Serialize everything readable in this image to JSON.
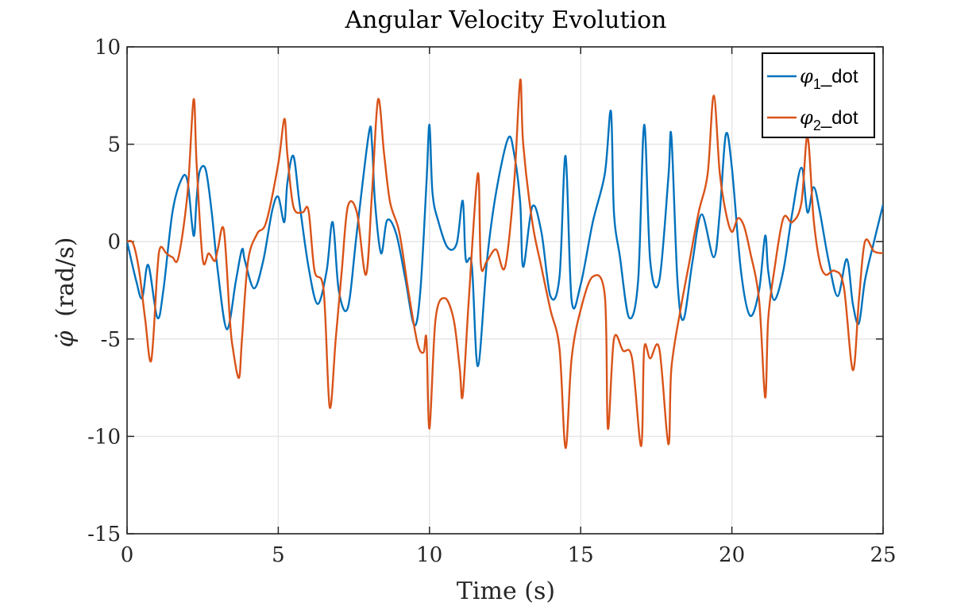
{
  "chart_data": {
    "type": "line",
    "title": "Angular Velocity Evolution",
    "xlabel": "Time (s)",
    "ylabel_symbol": "φ̇",
    "ylabel_unit": "(rad/s)",
    "xlim": [
      0,
      25
    ],
    "ylim": [
      -15,
      10
    ],
    "xticks": [
      0,
      5,
      10,
      15,
      20,
      25
    ],
    "xtick_labels": [
      "0",
      "5",
      "10",
      "15",
      "20",
      "25"
    ],
    "yticks": [
      -15,
      -10,
      -5,
      0,
      5,
      10
    ],
    "ytick_labels": [
      "-15",
      "-10",
      "-5",
      "0",
      "5",
      "10"
    ],
    "grid": true,
    "legend_position": "top-right",
    "series": [
      {
        "name": "φ1_dot",
        "legend_symbol": "φ",
        "legend_sub": "1",
        "legend_suffix": "_dot",
        "color": "#0072BD",
        "x": [
          0,
          0.3,
          0.5,
          0.7,
          1.0,
          1.2,
          1.5,
          1.8,
          2.0,
          2.2,
          2.3,
          2.4,
          2.6,
          2.8,
          3.0,
          3.3,
          3.6,
          3.8,
          3.9,
          4.2,
          4.5,
          4.8,
          5.0,
          5.2,
          5.3,
          5.5,
          5.7,
          6.0,
          6.3,
          6.6,
          6.8,
          7.0,
          7.3,
          7.6,
          8.0,
          8.1,
          8.2,
          8.4,
          8.6,
          8.9,
          9.2,
          9.5,
          9.7,
          9.9,
          10.0,
          10.1,
          10.3,
          10.6,
          10.9,
          11.1,
          11.2,
          11.4,
          11.6,
          11.9,
          12.2,
          12.6,
          12.8,
          13.0,
          13.1,
          13.4,
          13.7,
          14.0,
          14.3,
          14.5,
          14.7,
          15.0,
          15.4,
          15.8,
          16.0,
          16.1,
          16.3,
          16.6,
          16.9,
          17.1,
          17.3,
          17.6,
          17.9,
          18.0,
          18.2,
          18.4,
          18.7,
          19.0,
          19.4,
          19.6,
          19.8,
          20.0,
          20.3,
          20.6,
          20.9,
          21.1,
          21.2,
          21.4,
          21.7,
          22.0,
          22.3,
          22.5,
          22.7,
          22.9,
          23.2,
          23.5,
          23.8,
          24.0,
          24.2,
          24.4,
          24.7,
          25.0
        ],
        "y": [
          0,
          -2.0,
          -2.9,
          -1.2,
          -3.9,
          -2.5,
          1.5,
          3.2,
          3.1,
          0.3,
          2.2,
          3.6,
          3.7,
          1.5,
          -1.5,
          -4.5,
          -2.0,
          -0.4,
          -1.0,
          -2.4,
          -1.0,
          1.6,
          2.3,
          1.0,
          3.0,
          4.4,
          2.0,
          -1.3,
          -3.2,
          -1.5,
          1.0,
          -2.5,
          -3.4,
          0.5,
          5.6,
          5.0,
          2.0,
          -0.6,
          1.1,
          0.4,
          -1.9,
          -4.3,
          -2.5,
          3.0,
          6.0,
          2.5,
          1.0,
          -0.3,
          -0.1,
          2.1,
          -0.9,
          -1.2,
          -6.4,
          -1.0,
          2.5,
          5.3,
          4.5,
          2.0,
          -1.3,
          1.8,
          0.5,
          -2.8,
          -1.8,
          4.4,
          -3.0,
          -2.2,
          1.0,
          3.5,
          6.7,
          1.5,
          -0.8,
          -3.9,
          -2.0,
          6.0,
          -1.0,
          -2.0,
          3.3,
          5.4,
          -2.0,
          -4.0,
          -1.0,
          1.4,
          -0.8,
          1.5,
          5.5,
          3.8,
          -1.5,
          -3.8,
          -2.5,
          0.3,
          -1.5,
          -3.0,
          -1.5,
          1.5,
          3.8,
          1.5,
          2.8,
          1.6,
          -1.0,
          -2.8,
          -0.9,
          -3.2,
          -4.2,
          -2.0,
          0.0,
          1.9
        ]
      },
      {
        "name": "φ2_dot",
        "legend_symbol": "φ",
        "legend_sub": "2",
        "legend_suffix": "_dot",
        "color": "#D95319",
        "x": [
          0,
          0.2,
          0.4,
          0.6,
          0.8,
          1.0,
          1.1,
          1.3,
          1.5,
          1.7,
          2.0,
          2.2,
          2.3,
          2.5,
          2.7,
          2.9,
          3.0,
          3.2,
          3.4,
          3.5,
          3.7,
          3.8,
          4.0,
          4.3,
          4.6,
          5.0,
          5.2,
          5.3,
          5.5,
          5.8,
          6.0,
          6.2,
          6.5,
          6.7,
          6.9,
          7.1,
          7.3,
          7.6,
          7.9,
          8.1,
          8.3,
          8.5,
          8.7,
          9.0,
          9.3,
          9.6,
          9.8,
          9.9,
          10.0,
          10.2,
          10.5,
          10.8,
          11.0,
          11.1,
          11.3,
          11.6,
          11.7,
          11.9,
          12.2,
          12.5,
          12.8,
          13.0,
          13.1,
          13.4,
          13.7,
          14.0,
          14.3,
          14.5,
          14.7,
          15.0,
          15.4,
          15.8,
          15.9,
          16.1,
          16.4,
          16.7,
          17.0,
          17.1,
          17.3,
          17.6,
          17.9,
          18.0,
          18.3,
          18.6,
          18.9,
          19.2,
          19.4,
          19.6,
          19.8,
          20.0,
          20.2,
          20.4,
          20.6,
          20.9,
          21.1,
          21.2,
          21.4,
          21.7,
          22.0,
          22.3,
          22.5,
          22.7,
          22.9,
          23.1,
          23.4,
          23.7,
          24.0,
          24.2,
          24.4,
          24.7,
          25.0
        ],
        "y": [
          0,
          -0.1,
          -1.5,
          -4.0,
          -6.1,
          -1.5,
          -0.3,
          -0.6,
          -0.8,
          -0.8,
          2.5,
          7.3,
          4.0,
          -0.9,
          -0.6,
          -1.0,
          -0.4,
          0.6,
          -4.0,
          -5.5,
          -7.0,
          -5.0,
          -1.0,
          0.4,
          1.0,
          4.0,
          6.3,
          4.5,
          1.8,
          1.5,
          1.6,
          -1.5,
          -2.5,
          -8.5,
          -5.0,
          -1.5,
          1.8,
          1.5,
          -1.7,
          2.5,
          7.3,
          4.5,
          2.0,
          0.5,
          -2.5,
          -5.2,
          -5.7,
          -5.0,
          -9.6,
          -4.0,
          -2.9,
          -4.0,
          -6.5,
          -7.9,
          -3.0,
          3.5,
          -1.2,
          -1.0,
          -0.4,
          -1.3,
          3.0,
          8.3,
          5.0,
          1.0,
          -1.3,
          -3.5,
          -5.5,
          -10.6,
          -6.0,
          -3.5,
          -1.8,
          -2.8,
          -9.6,
          -5.0,
          -5.6,
          -6.0,
          -10.5,
          -5.5,
          -6.0,
          -5.5,
          -10.4,
          -6.5,
          -3.5,
          -1.0,
          1.5,
          3.5,
          7.5,
          3.5,
          1.5,
          0.5,
          1.2,
          0.8,
          -0.5,
          -3.0,
          -8.0,
          -4.0,
          -1.5,
          1.2,
          1.0,
          2.0,
          5.4,
          1.2,
          -1.0,
          -1.7,
          -1.5,
          -2.3,
          -6.6,
          -3.0,
          0.0,
          -0.5,
          -0.6
        ]
      }
    ]
  }
}
